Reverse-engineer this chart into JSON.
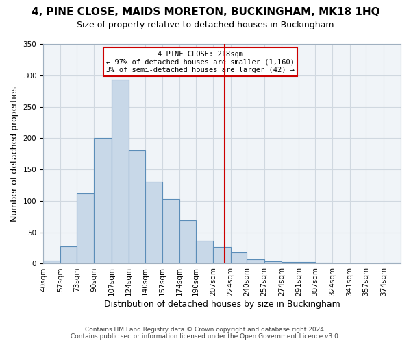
{
  "title": "4, PINE CLOSE, MAIDS MORETON, BUCKINGHAM, MK18 1HQ",
  "subtitle": "Size of property relative to detached houses in Buckingham",
  "xlabel": "Distribution of detached houses by size in Buckingham",
  "ylabel": "Number of detached properties",
  "bin_labels": [
    "40sqm",
    "57sqm",
    "73sqm",
    "90sqm",
    "107sqm",
    "124sqm",
    "140sqm",
    "157sqm",
    "174sqm",
    "190sqm",
    "207sqm",
    "224sqm",
    "240sqm",
    "257sqm",
    "274sqm",
    "291sqm",
    "307sqm",
    "324sqm",
    "341sqm",
    "357sqm",
    "374sqm"
  ],
  "bin_left_edges": [
    40,
    57,
    73,
    90,
    107,
    124,
    140,
    157,
    174,
    190,
    207,
    224,
    240,
    257,
    274,
    291,
    307,
    324,
    341,
    357,
    374
  ],
  "bin_widths": [
    17,
    16,
    17,
    17,
    17,
    16,
    17,
    17,
    16,
    17,
    17,
    16,
    17,
    17,
    17,
    16,
    17,
    17,
    16,
    17,
    17
  ],
  "bar_heights": [
    5,
    28,
    112,
    200,
    293,
    181,
    131,
    103,
    69,
    37,
    27,
    18,
    7,
    4,
    3,
    3,
    2,
    0,
    1,
    0,
    2
  ],
  "bar_color": "#c8d8e8",
  "bar_edge_color": "#5b8db8",
  "property_value": 218,
  "vline_color": "#cc0000",
  "annotation_title": "4 PINE CLOSE: 218sqm",
  "annotation_line1": "← 97% of detached houses are smaller (1,160)",
  "annotation_line2": "3% of semi-detached houses are larger (42) →",
  "annotation_box_color": "#ffffff",
  "annotation_box_edge_color": "#cc0000",
  "ylim": [
    0,
    350
  ],
  "yticks": [
    0,
    50,
    100,
    150,
    200,
    250,
    300,
    350
  ],
  "grid_color": "#d0d8e0",
  "background_color": "#f0f4f8",
  "footer_line1": "Contains HM Land Registry data © Crown copyright and database right 2024.",
  "footer_line2": "Contains public sector information licensed under the Open Government Licence v3.0.",
  "title_fontsize": 11,
  "subtitle_fontsize": 9,
  "xlabel_fontsize": 9,
  "ylabel_fontsize": 9,
  "tick_fontsize": 7.5,
  "footer_fontsize": 6.5
}
